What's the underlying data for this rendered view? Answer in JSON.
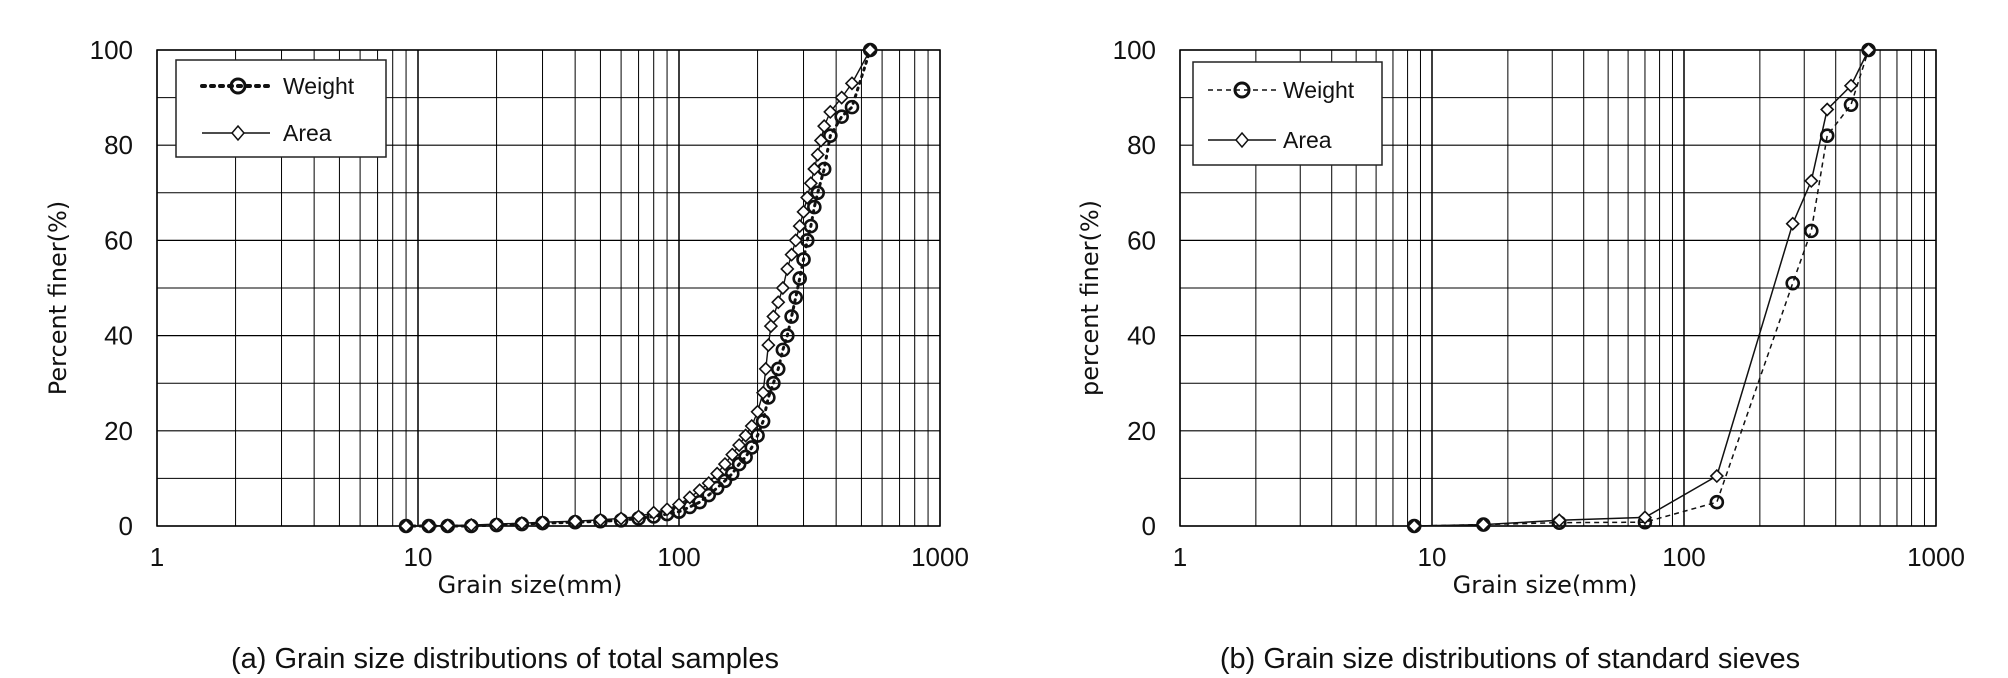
{
  "chart_data": [
    {
      "type": "scatter",
      "xscale": "log",
      "xlim": [
        1,
        1000
      ],
      "ylim": [
        0,
        100
      ],
      "xticks": [
        "1",
        "10",
        "100",
        "1000"
      ],
      "yticks": [
        "0",
        "20",
        "40",
        "60",
        "80",
        "100"
      ],
      "xlabel": "Grain size(mm)",
      "ylabel": "Percent finer(%)",
      "caption": "(a) Grain size distributions of total samples",
      "legend_position": "top-left",
      "grid": true,
      "series": [
        {
          "name": "Weight",
          "marker": "circle",
          "line": "dotted",
          "x": [
            9,
            11,
            13,
            16,
            20,
            25,
            30,
            40,
            50,
            60,
            70,
            80,
            90,
            100,
            110,
            120,
            130,
            140,
            150,
            160,
            170,
            180,
            190,
            200,
            210,
            220,
            230,
            240,
            250,
            260,
            270,
            280,
            290,
            300,
            310,
            320,
            330,
            340,
            360,
            380,
            420,
            460,
            540
          ],
          "y": [
            0,
            0,
            0,
            0,
            0.2,
            0.4,
            0.6,
            0.8,
            1,
            1.2,
            1.6,
            2,
            2.5,
            3,
            4,
            5,
            6.5,
            8,
            9.5,
            11,
            13,
            14.5,
            16.5,
            19,
            22,
            27,
            30,
            33,
            37,
            40,
            44,
            48,
            52,
            56,
            60,
            63,
            67,
            70,
            75,
            82,
            86,
            88,
            100
          ]
        },
        {
          "name": "Area",
          "marker": "diamond",
          "line": "solid",
          "x": [
            9,
            11,
            13,
            16,
            20,
            25,
            30,
            40,
            50,
            60,
            70,
            80,
            90,
            100,
            110,
            120,
            130,
            140,
            150,
            160,
            170,
            180,
            190,
            200,
            210,
            215,
            220,
            225,
            230,
            240,
            250,
            260,
            270,
            280,
            290,
            300,
            310,
            320,
            330,
            340,
            350,
            360,
            380,
            420,
            460,
            540
          ],
          "y": [
            0,
            0,
            0.1,
            0.2,
            0.4,
            0.6,
            0.8,
            1,
            1.3,
            1.6,
            2,
            2.8,
            3.5,
            4.5,
            6,
            7.5,
            9,
            11,
            13,
            15,
            17,
            19,
            21,
            24,
            28,
            33,
            38,
            42,
            44,
            47,
            50,
            54,
            57,
            60,
            63,
            66,
            69,
            72,
            75,
            78,
            81,
            84,
            87,
            90,
            93,
            100
          ]
        }
      ]
    },
    {
      "type": "line",
      "xscale": "log",
      "xlim": [
        1,
        1000
      ],
      "ylim": [
        0,
        100
      ],
      "xticks": [
        "1",
        "10",
        "100",
        "1000"
      ],
      "yticks": [
        "0",
        "20",
        "40",
        "60",
        "80",
        "100"
      ],
      "xlabel": "Grain size(mm)",
      "ylabel": "percent finer(%)",
      "caption": "(b) Grain size distributions of standard sieves",
      "legend_position": "top-left",
      "grid": true,
      "series": [
        {
          "name": "Weight",
          "marker": "circle",
          "line": "dashed",
          "x": [
            8.5,
            16,
            32,
            70,
            135,
            270,
            320,
            370,
            460,
            540
          ],
          "y": [
            0,
            0.3,
            0.7,
            0.8,
            5,
            51,
            62,
            82,
            88.5,
            100
          ]
        },
        {
          "name": "Area",
          "marker": "diamond",
          "line": "solid",
          "x": [
            8.5,
            16,
            32,
            70,
            135,
            270,
            320,
            370,
            460,
            540
          ],
          "y": [
            0,
            0.3,
            1.2,
            1.8,
            10.5,
            63.5,
            72.5,
            87.5,
            92.5,
            100
          ]
        }
      ]
    }
  ]
}
